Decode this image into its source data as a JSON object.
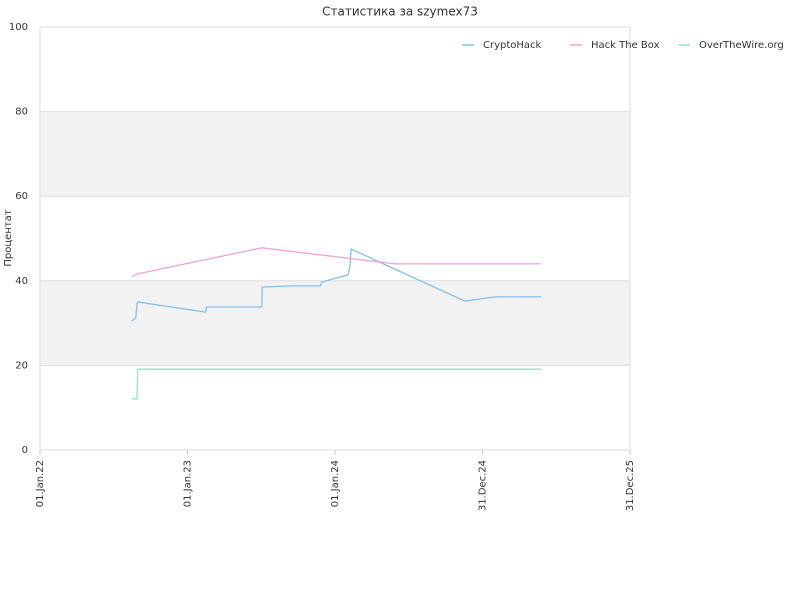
{
  "chart_data": {
    "type": "line",
    "title": "Статистика за szymex73",
    "y_label": "Процентат",
    "xlim": [
      "2022-01-01",
      "2025-12-31"
    ],
    "xticks": [
      {
        "value": "2022-01-01",
        "label": "01.Jan.22"
      },
      {
        "value": "2023-01-01",
        "label": "01.Jan.23"
      },
      {
        "value": "2024-01-01",
        "label": "01.Jan.24"
      },
      {
        "value": "2024-12-31",
        "label": "31.Dec.24"
      },
      {
        "value": "2025-12-31",
        "label": "31.Dec.25"
      }
    ],
    "ylim": [
      0,
      100
    ],
    "yticks": [
      0,
      20,
      40,
      60,
      80,
      100
    ],
    "grid": true,
    "legend": "top-right",
    "series": [
      {
        "name": "CryptoHack",
        "color": "#85bfee",
        "x": [
          "2022-08-16",
          "2022-08-26",
          "2022-08-29",
          "2022-08-31",
          "2023-02-15",
          "2023-02-17",
          "2023-07-04",
          "2023-07-05",
          "2023-09-17",
          "2023-11-26",
          "2023-11-29",
          "2024-02-02",
          "2024-02-07",
          "2024-02-10",
          "2024-11-17",
          "2025-01-31",
          "2025-05-25"
        ],
        "values": [
          30.5,
          31.2,
          34.5,
          35.0,
          32.6,
          33.8,
          33.8,
          38.5,
          38.8,
          38.8,
          39.7,
          41.4,
          43.5,
          47.5,
          35.2,
          36.2,
          36.2
        ]
      },
      {
        "name": "Hack The Box",
        "color": "#f0a6cc",
        "x": [
          "2022-08-16",
          "2022-08-29",
          "2023-07-04",
          "2024-05-28",
          "2025-05-25"
        ],
        "values": [
          40.9,
          41.6,
          47.8,
          44.0,
          44.0
        ]
      },
      {
        "name": "OverTheWire.org",
        "color": "#96e4c8",
        "x": [
          "2022-08-16",
          "2022-08-29",
          "2022-08-31",
          "2025-05-25"
        ],
        "values": [
          12.1,
          12.1,
          19.1,
          19.1
        ]
      }
    ]
  }
}
